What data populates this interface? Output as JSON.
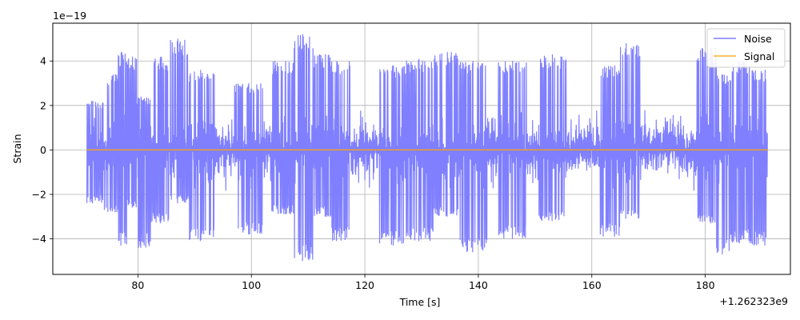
{
  "chart_data": {
    "type": "line",
    "title": "",
    "xlabel": "Time [s]",
    "ylabel": "Strain",
    "x_offset_label": "+1.262323e9",
    "y_scale_label": "1e−19",
    "xlim": [
      65,
      195
    ],
    "ylim": [
      -5.6,
      5.7
    ],
    "x_ticks": [
      80,
      100,
      120,
      140,
      160,
      180
    ],
    "x_tick_labels": [
      "80",
      "100",
      "120",
      "140",
      "160",
      "180"
    ],
    "y_ticks": [
      -4,
      -2,
      0,
      2,
      4
    ],
    "y_tick_labels": [
      "−4",
      "−2",
      "0",
      "2",
      "4"
    ],
    "grid": true,
    "legend_position": "top-right",
    "series": [
      {
        "name": "Noise",
        "color": "#7f7fff",
        "x_range": [
          71,
          191
        ],
        "x_step": 0.05,
        "amplitude_envelope": [
          {
            "x": 72,
            "min": -2.4,
            "max": 2.2
          },
          {
            "x": 76,
            "min": -2.8,
            "max": 3.4
          },
          {
            "x": 77,
            "min": -4.3,
            "max": 4.4
          },
          {
            "x": 79,
            "min": -2.6,
            "max": 4.2
          },
          {
            "x": 80.5,
            "min": -4.4,
            "max": 2.4
          },
          {
            "x": 84,
            "min": -3.3,
            "max": 4.2
          },
          {
            "x": 87,
            "min": -2.4,
            "max": 5.0
          },
          {
            "x": 91,
            "min": -4.1,
            "max": 3.6
          },
          {
            "x": 99.5,
            "min": -3.8,
            "max": 3.0
          },
          {
            "x": 106,
            "min": -2.9,
            "max": 4.0
          },
          {
            "x": 109,
            "min": -5.0,
            "max": 5.2
          },
          {
            "x": 113,
            "min": -3.0,
            "max": 4.3
          },
          {
            "x": 115,
            "min": -4.1,
            "max": 4.0
          },
          {
            "x": 125,
            "min": -4.3,
            "max": 3.8
          },
          {
            "x": 129.5,
            "min": -4.1,
            "max": 4.1
          },
          {
            "x": 134.5,
            "min": -3.0,
            "max": 4.4
          },
          {
            "x": 139,
            "min": -4.6,
            "max": 4.0
          },
          {
            "x": 146,
            "min": -4.0,
            "max": 4.0
          },
          {
            "x": 153,
            "min": -3.2,
            "max": 4.3
          },
          {
            "x": 164,
            "min": -3.9,
            "max": 3.8
          },
          {
            "x": 166,
            "min": -3.1,
            "max": 4.8
          },
          {
            "x": 181,
            "min": -3.3,
            "max": 4.6
          },
          {
            "x": 183,
            "min": -4.7,
            "max": 3.4
          },
          {
            "x": 186,
            "min": -4.2,
            "max": 4.0
          },
          {
            "x": 190.5,
            "min": -4.3,
            "max": 3.6
          }
        ]
      },
      {
        "name": "Signal",
        "color": "#ffa500",
        "x": [
          71,
          191
        ],
        "y": [
          0,
          0
        ]
      }
    ]
  }
}
